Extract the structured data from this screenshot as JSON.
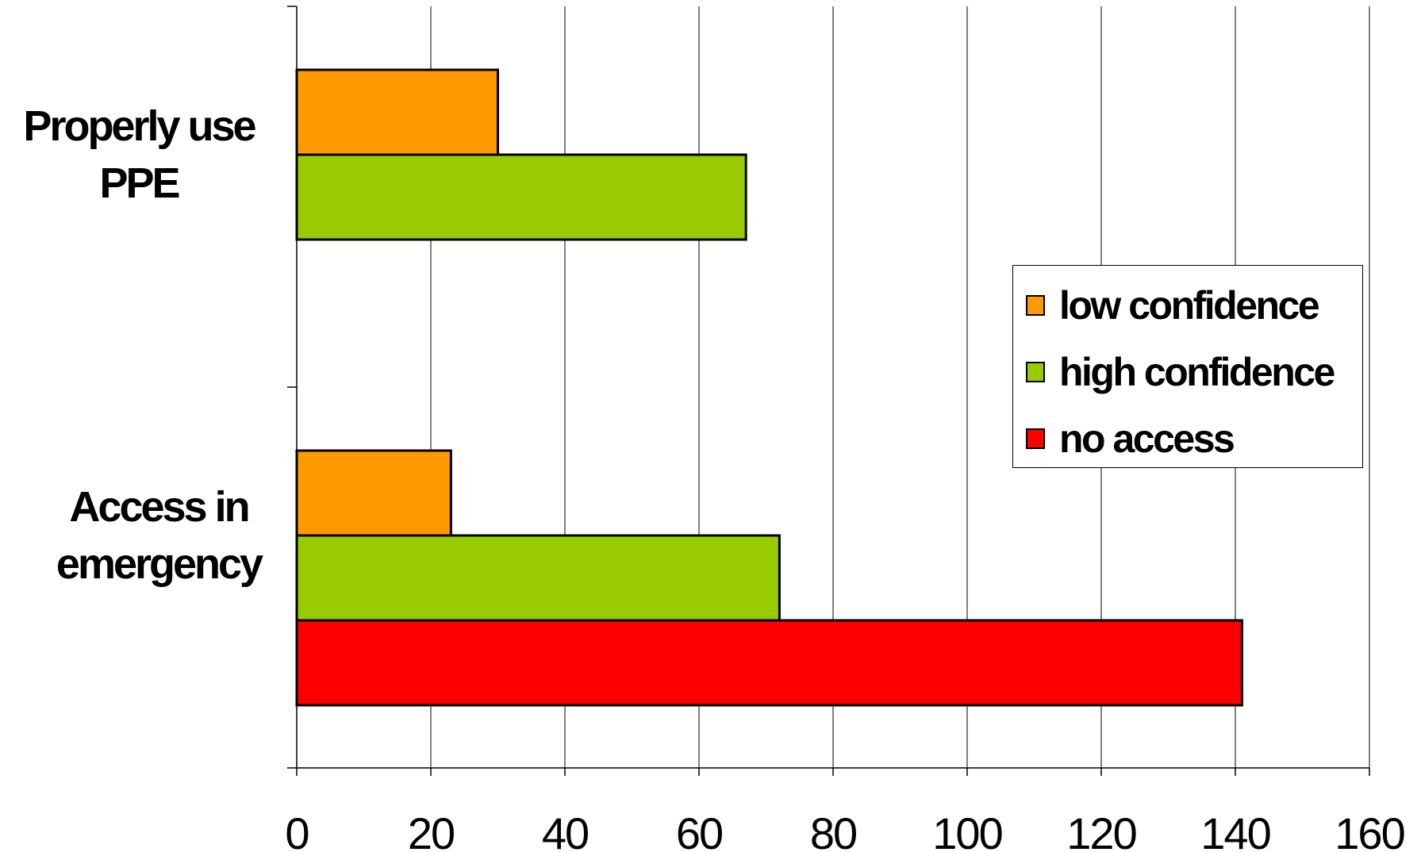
{
  "chart_data": {
    "type": "bar",
    "orientation": "horizontal",
    "categories": [
      "Properly use PPE",
      "Access in emergency"
    ],
    "category_lines": [
      [
        "Properly use",
        "PPE"
      ],
      [
        "Access in",
        "emergency"
      ]
    ],
    "series": [
      {
        "name": "low confidence",
        "color": "#FF9900",
        "values": [
          30,
          23
        ]
      },
      {
        "name": "high confidence",
        "color": "#99CC00",
        "values": [
          67,
          72
        ]
      },
      {
        "name": "no access",
        "color": "#FF0000",
        "values": [
          null,
          141
        ]
      }
    ],
    "xlim": [
      0,
      160
    ],
    "xticks": [
      0,
      20,
      40,
      60,
      80,
      100,
      120,
      140,
      160
    ],
    "xtick_labels": [
      "0",
      "20",
      "40",
      "60",
      "80",
      "100",
      "120",
      "140",
      "160"
    ],
    "grid": "vertical",
    "legend_position": "right",
    "title": "",
    "xlabel": "",
    "ylabel": ""
  }
}
